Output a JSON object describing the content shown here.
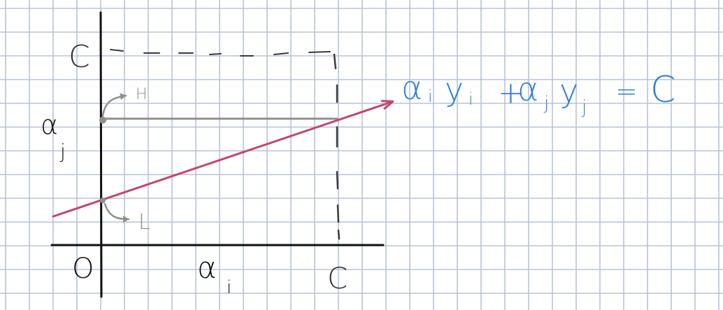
{
  "colors": {
    "background": "#ffffff",
    "grid": "#b7c3d7",
    "axis_ink": "#111111",
    "box_dash": "#3a3a3a",
    "bound_line": "#8f8f8f",
    "constraint_line": "#c2456e",
    "equation_ink": "#2f7de0"
  },
  "labels": {
    "c_axis_left": "C",
    "c_axis_bottom": "C",
    "origin": "O",
    "alpha_j": "α",
    "alpha_j_sub": "j",
    "alpha_i": "α",
    "alpha_i_sub": "i",
    "upper_bound": "H",
    "lower_bound": "L",
    "equation": {
      "alpha1": "α",
      "sub_i1": "i",
      "y1": "y",
      "sub_i2": "i",
      "plus": "+",
      "alpha2": "α",
      "sub_j1": "j",
      "y2": "y",
      "sub_j2": "j",
      "equals": "=",
      "rhs": "C"
    }
  }
}
